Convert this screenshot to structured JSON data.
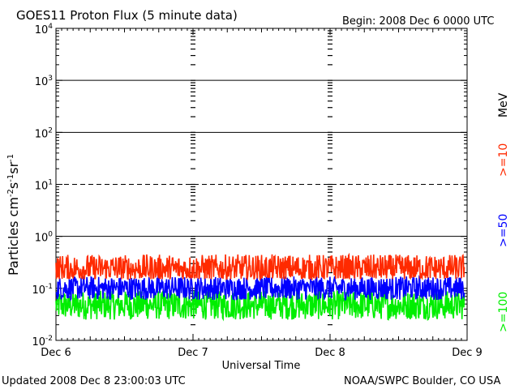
{
  "chart_data": {
    "type": "line",
    "title": "GOES11 Proton Flux (5 minute data)",
    "begin_label": "Begin: 2008 Dec 6 0000 UTC",
    "xlabel": "Universal Time",
    "ylabel": {
      "base": "Particles cm",
      "sup1": "-2",
      "mid1": "s",
      "sup2": "-1",
      "mid2": "sr",
      "sup3": "-1"
    },
    "x_ticks": [
      "Dec 6",
      "Dec 7",
      "Dec 8",
      "Dec 9"
    ],
    "x_range_days": [
      0,
      3
    ],
    "y_scale": "log",
    "ylim": [
      0.01,
      10000
    ],
    "y_ticks": [
      {
        "base": "10",
        "exp": "4"
      },
      {
        "base": "10",
        "exp": "3"
      },
      {
        "base": "10",
        "exp": "2"
      },
      {
        "base": "10",
        "exp": "1"
      },
      {
        "base": "10",
        "exp": "0"
      },
      {
        "base": "10",
        "exp": "-1"
      },
      {
        "base": "10",
        "exp": "-2"
      }
    ],
    "threshold_lines": [
      10,
      100,
      1000,
      1
    ],
    "dashed_lines": [
      10
    ],
    "unit_label": "MeV",
    "series": [
      {
        "name": ">=10",
        "color": "#ff2a00",
        "typical_range": [
          0.15,
          0.45
        ]
      },
      {
        "name": ">=50",
        "color": "#0000ff",
        "typical_range": [
          0.06,
          0.17
        ]
      },
      {
        "name": ">=100",
        "color": "#00ee00",
        "typical_range": [
          0.025,
          0.09
        ]
      }
    ],
    "grid": false
  },
  "footer": {
    "updated": "Updated 2008 Dec  8 23:00:03 UTC",
    "credit": "NOAA/SWPC Boulder, CO USA"
  }
}
